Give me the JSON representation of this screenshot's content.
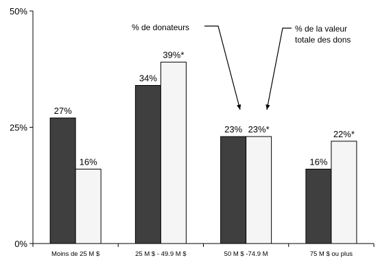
{
  "chart_data": {
    "type": "bar",
    "categories": [
      "Moins de 25 M $",
      "25 M $ - 49.9 M $",
      "50 M $ -74.9 M",
      "75 M $ ou plus"
    ],
    "series": [
      {
        "values": [
          27,
          34,
          23,
          16
        ],
        "labels": [
          "27%",
          "34%",
          "23%",
          "16%"
        ],
        "color": "#3f3f3f"
      },
      {
        "values": [
          16,
          39,
          23,
          22
        ],
        "labels": [
          "16%",
          "39%*",
          "23%*",
          "22%*"
        ],
        "color": "#f5f5f5"
      }
    ],
    "ylim": [
      0,
      50
    ],
    "yticks": [
      {
        "value": 0,
        "label": "0%"
      },
      {
        "value": 25,
        "label": "25%"
      },
      {
        "value": 50,
        "label": "50%"
      }
    ],
    "annotations": [
      {
        "lines": [
          "% de donateurs"
        ],
        "series": 0
      },
      {
        "lines": [
          "% de la valeur",
          "totale des dons"
        ],
        "series": 1
      }
    ],
    "grid": false,
    "legend": "none"
  }
}
